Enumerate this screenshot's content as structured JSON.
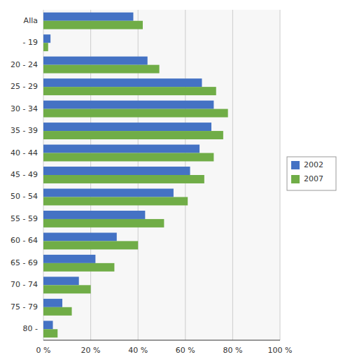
{
  "chart_data": {
    "type": "bar",
    "orientation": "horizontal",
    "categories": [
      "Alla",
      "- 19",
      "20 - 24",
      "25 - 29",
      "30 - 34",
      "35 - 39",
      "40 - 44",
      "45 - 49",
      "50 - 54",
      "55 - 59",
      "60 - 64",
      "65 - 69",
      "70 - 74",
      "75 - 79",
      "80 -"
    ],
    "series": [
      {
        "name": "2002",
        "color": "#4472c4",
        "values": [
          38,
          3,
          44,
          67,
          72,
          71,
          66,
          62,
          55,
          43,
          31,
          22,
          15,
          8,
          4
        ]
      },
      {
        "name": "2007",
        "color": "#70ad47",
        "values": [
          42,
          2,
          49,
          73,
          78,
          76,
          72,
          68,
          61,
          51,
          40,
          30,
          20,
          12,
          6
        ]
      }
    ],
    "xlim": [
      0,
      100
    ],
    "xticks": [
      {
        "value": 0,
        "label": "0 %"
      },
      {
        "value": 20,
        "label": "20 %"
      },
      {
        "value": 40,
        "label": "40 %"
      },
      {
        "value": 60,
        "label": "60 %"
      },
      {
        "value": 80,
        "label": "80 %"
      },
      {
        "value": 100,
        "label": "100 %"
      }
    ],
    "grid": true,
    "legend": "right"
  }
}
